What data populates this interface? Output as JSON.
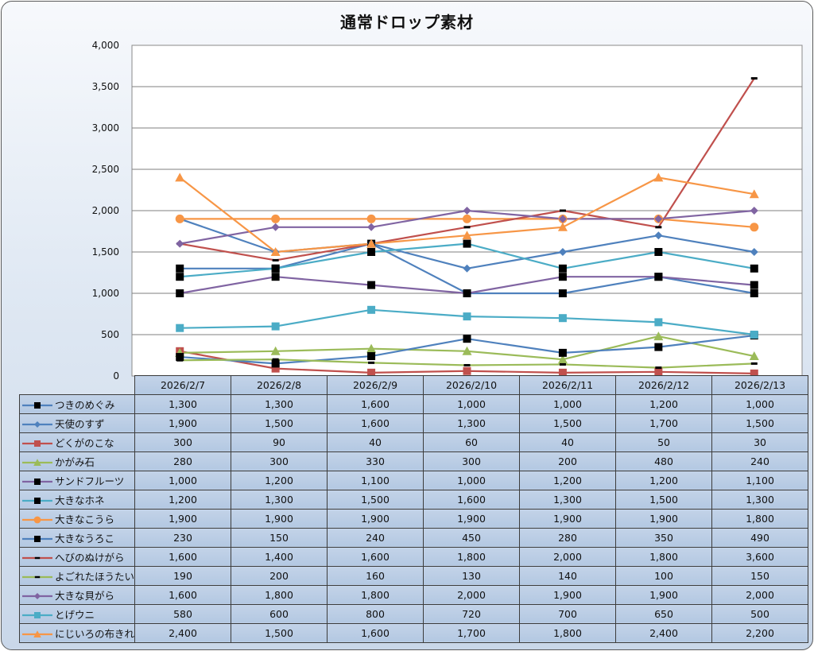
{
  "chart_data": {
    "type": "line",
    "title": "通常ドロップ素材",
    "xlabel": "",
    "ylabel": "",
    "ylim": [
      0,
      4000
    ],
    "yticks": [
      0,
      500,
      1000,
      1500,
      2000,
      2500,
      3000,
      3500,
      4000
    ],
    "ytick_labels": [
      "0",
      "500",
      "1,000",
      "1,500",
      "2,000",
      "2,500",
      "3,000",
      "3,500",
      "4,000"
    ],
    "grid": true,
    "legend": "data-table-bottom",
    "categories": [
      "2026/2/7",
      "2026/2/8",
      "2026/2/9",
      "2026/2/10",
      "2026/2/11",
      "2026/2/12",
      "2026/2/13"
    ],
    "series": [
      {
        "name": "つきのめぐみ",
        "color": "#4f81bd",
        "marker": "square-black",
        "values": [
          1300,
          1300,
          1600,
          1000,
          1000,
          1200,
          1000
        ],
        "labels": [
          "1,300",
          "1,300",
          "1,600",
          "1,000",
          "1,000",
          "1,200",
          "1,000"
        ]
      },
      {
        "name": "天使のすず",
        "color": "#4f81bd",
        "marker": "diamond",
        "values": [
          1900,
          1500,
          1600,
          1300,
          1500,
          1700,
          1500
        ],
        "labels": [
          "1,900",
          "1,500",
          "1,600",
          "1,300",
          "1,500",
          "1,700",
          "1,500"
        ]
      },
      {
        "name": "どくがのこな",
        "color": "#c0504d",
        "marker": "square",
        "values": [
          300,
          90,
          40,
          60,
          40,
          50,
          30
        ],
        "labels": [
          "300",
          "90",
          "40",
          "60",
          "40",
          "50",
          "30"
        ]
      },
      {
        "name": "かがみ石",
        "color": "#9bbb59",
        "marker": "triangle",
        "values": [
          280,
          300,
          330,
          300,
          200,
          480,
          240
        ],
        "labels": [
          "280",
          "300",
          "330",
          "300",
          "200",
          "480",
          "240"
        ]
      },
      {
        "name": "サンドフルーツ",
        "color": "#8064a2",
        "marker": "square-black",
        "values": [
          1000,
          1200,
          1100,
          1000,
          1200,
          1200,
          1100
        ],
        "labels": [
          "1,000",
          "1,200",
          "1,100",
          "1,000",
          "1,200",
          "1,200",
          "1,100"
        ]
      },
      {
        "name": "大きなホネ",
        "color": "#4bacc6",
        "marker": "square-black",
        "values": [
          1200,
          1300,
          1500,
          1600,
          1300,
          1500,
          1300
        ],
        "labels": [
          "1,200",
          "1,300",
          "1,500",
          "1,600",
          "1,300",
          "1,500",
          "1,300"
        ]
      },
      {
        "name": "大きなこうら",
        "color": "#f79646",
        "marker": "circle",
        "values": [
          1900,
          1900,
          1900,
          1900,
          1900,
          1900,
          1800
        ],
        "labels": [
          "1,900",
          "1,900",
          "1,900",
          "1,900",
          "1,900",
          "1,900",
          "1,800"
        ]
      },
      {
        "name": "大きなうろこ",
        "color": "#4f81bd",
        "marker": "square-black",
        "values": [
          230,
          150,
          240,
          450,
          280,
          350,
          490
        ],
        "labels": [
          "230",
          "150",
          "240",
          "450",
          "280",
          "350",
          "490"
        ]
      },
      {
        "name": "へびのぬけがら",
        "color": "#c0504d",
        "marker": "dash-black",
        "values": [
          1600,
          1400,
          1600,
          1800,
          2000,
          1800,
          3600
        ],
        "labels": [
          "1,600",
          "1,400",
          "1,600",
          "1,800",
          "2,000",
          "1,800",
          "3,600"
        ]
      },
      {
        "name": "よごれたほうたい",
        "color": "#9bbb59",
        "marker": "dash-black",
        "values": [
          190,
          200,
          160,
          130,
          140,
          100,
          150
        ],
        "labels": [
          "190",
          "200",
          "160",
          "130",
          "140",
          "100",
          "150"
        ]
      },
      {
        "name": "大きな貝がら",
        "color": "#8064a2",
        "marker": "diamond",
        "values": [
          1600,
          1800,
          1800,
          2000,
          1900,
          1900,
          2000
        ],
        "labels": [
          "1,600",
          "1,800",
          "1,800",
          "2,000",
          "1,900",
          "1,900",
          "2,000"
        ]
      },
      {
        "name": "とげウニ",
        "color": "#4bacc6",
        "marker": "square",
        "values": [
          580,
          600,
          800,
          720,
          700,
          650,
          500
        ],
        "labels": [
          "580",
          "600",
          "800",
          "720",
          "700",
          "650",
          "500"
        ]
      },
      {
        "name": "にじいろの布きれ",
        "color": "#f79646",
        "marker": "triangle",
        "values": [
          2400,
          1500,
          1600,
          1700,
          1800,
          2400,
          2200
        ],
        "labels": [
          "2,400",
          "1,500",
          "1,600",
          "1,700",
          "1,800",
          "2,400",
          "2,200"
        ]
      }
    ]
  }
}
